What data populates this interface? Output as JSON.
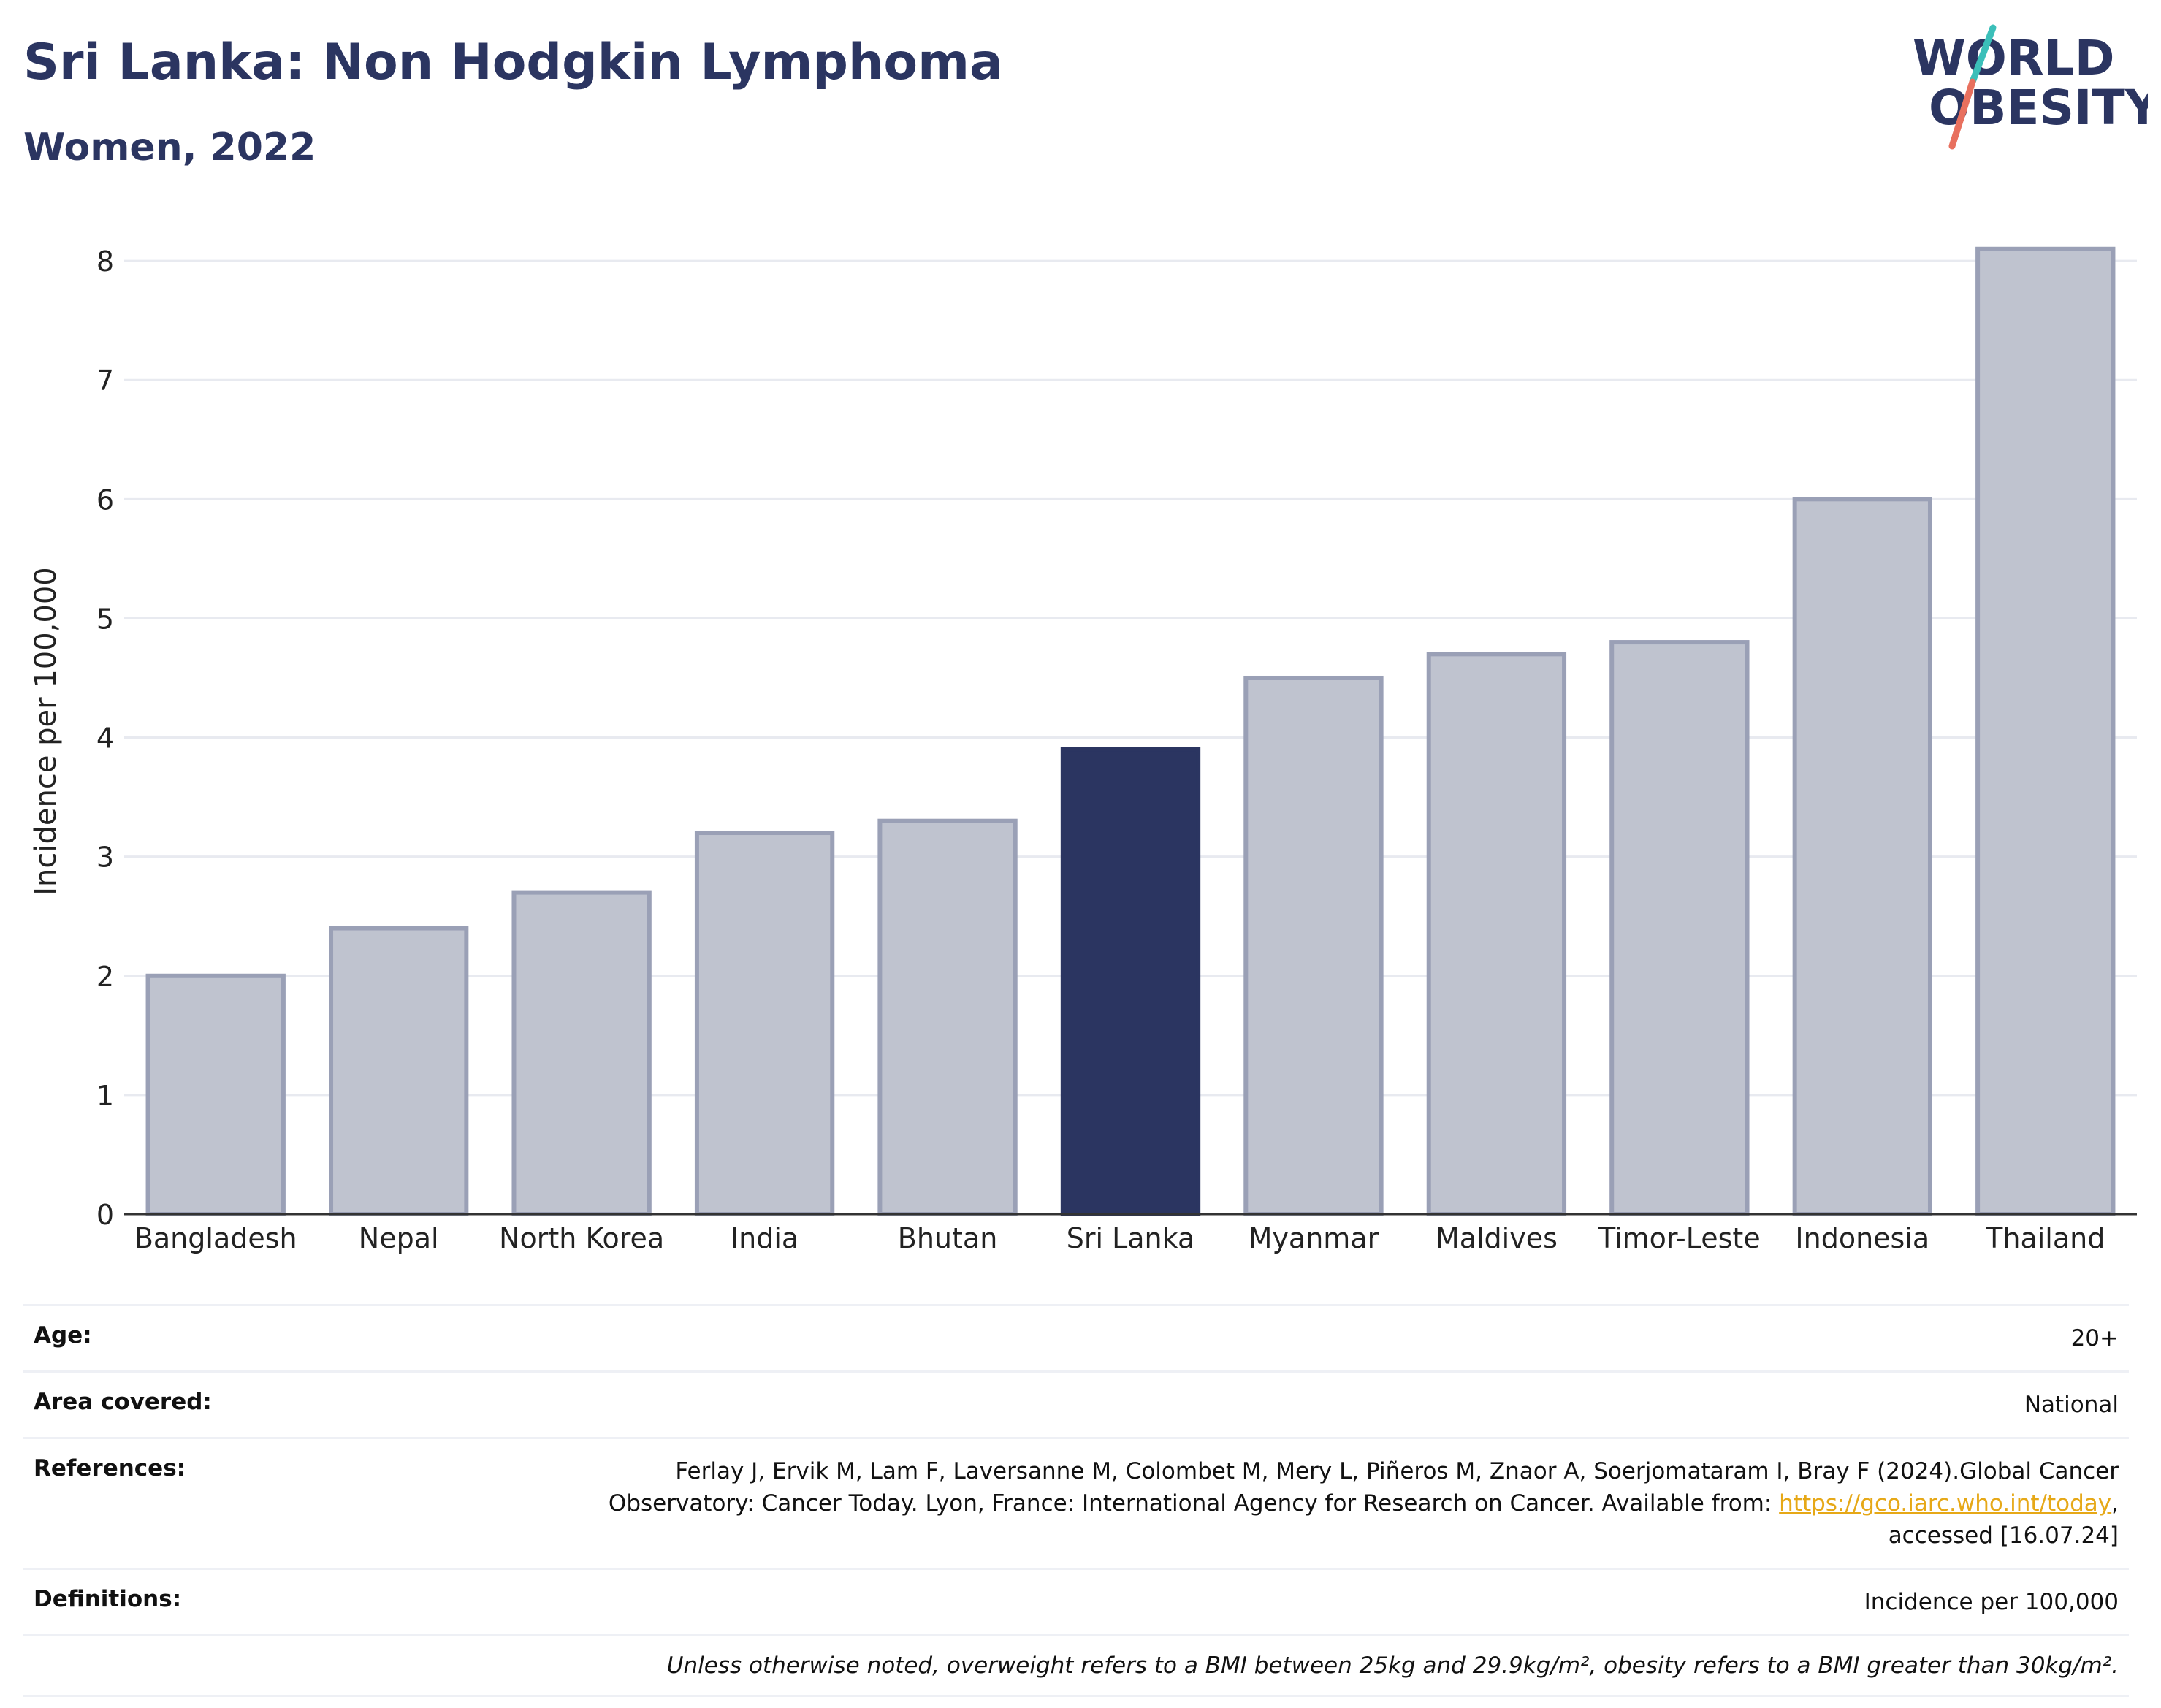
{
  "header": {
    "title": "Sri Lanka: Non Hodgkin Lymphoma",
    "subtitle": "Women, 2022"
  },
  "logo": {
    "line1": "WORLD",
    "line2": "OBESITY",
    "colors": {
      "text": "#2b3561",
      "slash_top": "#3bbfb9",
      "slash_bottom": "#e8705e"
    }
  },
  "chart_data": {
    "type": "bar",
    "categories": [
      "Bangladesh",
      "Nepal",
      "North Korea",
      "India",
      "Bhutan",
      "Sri Lanka",
      "Myanmar",
      "Maldives",
      "Timor-Leste",
      "Indonesia",
      "Thailand"
    ],
    "values": [
      2.0,
      2.4,
      2.7,
      3.2,
      3.3,
      3.9,
      4.5,
      4.7,
      4.8,
      6.0,
      8.1
    ],
    "highlight": "Sri Lanka",
    "ylabel": "Incidence per 100,000",
    "xlabel": "",
    "ylim": [
      0,
      8.35
    ],
    "yticks": [
      0,
      1,
      2,
      3,
      4,
      5,
      6,
      7,
      8
    ],
    "grid": true,
    "colors": {
      "bar": "#bfc3cf",
      "bar_border": "#9aa0b6",
      "highlight": "#2b3561",
      "grid": "#e8eaf0",
      "axis": "#333333"
    }
  },
  "meta": {
    "age_label": "Age:",
    "age_value": "20+",
    "area_label": "Area covered:",
    "area_value": "National",
    "references_label": "References:",
    "references_text_1": "Ferlay J, Ervik M, Lam F, Laversanne M, Colombet M, Mery L, Piñeros M, Znaor A, Soerjomataram I, Bray F (2024).Global Cancer",
    "references_text_2": "Observatory: Cancer Today. Lyon, France: International Agency for Research on Cancer. Available from: ",
    "references_link": "https://gco.iarc.who.int/today",
    "references_text_3": ",",
    "references_text_4": "accessed [16.07.24]",
    "definitions_label": "Definitions:",
    "definitions_value": "Incidence per 100,000",
    "note": "Unless otherwise noted, overweight refers to a BMI between 25kg and 29.9kg/m², obesity refers to a BMI greater than 30kg/m²."
  }
}
